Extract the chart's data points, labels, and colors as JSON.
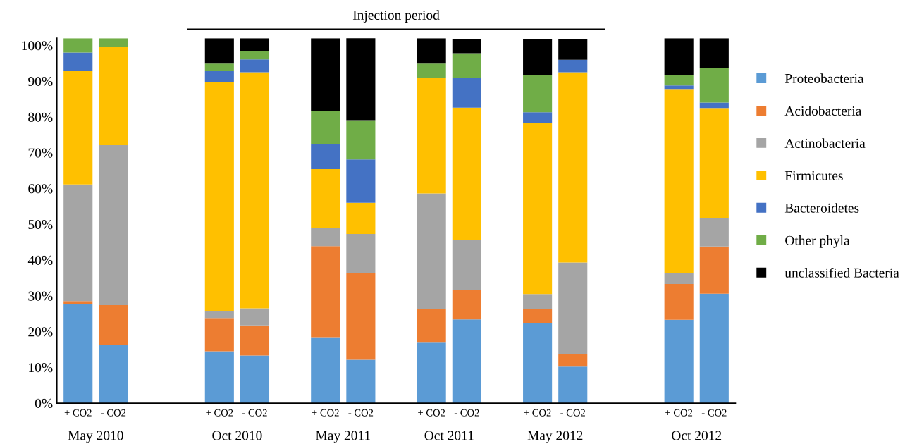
{
  "chart_data": {
    "type": "bar",
    "stacked": true,
    "categories": [
      "+ CO2",
      "- CO2",
      null,
      null,
      "+ CO2",
      "- CO2",
      null,
      "+ CO2",
      "- CO2",
      null,
      "+ CO2",
      "- CO2",
      null,
      "+ CO2",
      "- CO2",
      null,
      null,
      "+ CO2",
      "- CO2"
    ],
    "annotations": [
      "Injection period",
      "May 2010",
      "Oct 2010",
      "May 2011",
      "Oct 2011",
      "May 2012",
      "Oct 2012"
    ],
    "ylim": [
      0,
      102
    ],
    "yticks": [
      {
        "value": 0,
        "label": "0%"
      },
      {
        "value": 10,
        "label": "10%"
      },
      {
        "value": 20,
        "label": "20%"
      },
      {
        "value": 30,
        "label": "30%"
      },
      {
        "value": 40,
        "label": "40%"
      },
      {
        "value": 50,
        "label": "50%"
      },
      {
        "value": 60,
        "label": "60%"
      },
      {
        "value": 70,
        "label": "70%"
      },
      {
        "value": 80,
        "label": "80%"
      },
      {
        "value": 90,
        "label": "90%"
      },
      {
        "value": 100,
        "label": "100%"
      }
    ],
    "grid": false,
    "legend": "right",
    "marker": "square",
    "series": [
      {
        "name": "Proteobacteria",
        "color": "#5b9bd5",
        "values": [
          27.7,
          16.3,
          null,
          null,
          14.5,
          13.3,
          null,
          18.4,
          12.1,
          null,
          17.1,
          23.4,
          null,
          22.3,
          10.2,
          null,
          null,
          23.3,
          30.6
        ]
      },
      {
        "name": "Acidobacteria",
        "color": "#ed7d31",
        "values": [
          0.8,
          11.1,
          null,
          null,
          9.3,
          8.4,
          null,
          25.5,
          24.2,
          null,
          9.2,
          8.2,
          null,
          4.1,
          3.5,
          null,
          null,
          10.0,
          13.2
        ]
      },
      {
        "name": "Actinobacteria",
        "color": "#a5a5a5",
        "values": [
          32.6,
          44.7,
          null,
          null,
          2.0,
          4.8,
          null,
          5.1,
          11.0,
          null,
          32.3,
          13.9,
          null,
          4.1,
          25.6,
          null,
          null,
          3.0,
          8.0
        ]
      },
      {
        "name": "Firmicutes",
        "color": "#ffc000",
        "values": [
          31.7,
          27.5,
          null,
          null,
          64.0,
          66.0,
          null,
          16.4,
          8.7,
          null,
          32.3,
          37.1,
          null,
          47.9,
          53.2,
          null,
          null,
          51.5,
          30.7
        ]
      },
      {
        "name": "Bacteroidetes",
        "color": "#4472c4",
        "values": [
          5.2,
          0,
          null,
          null,
          3.0,
          3.6,
          null,
          7.0,
          12.1,
          null,
          0,
          8.3,
          null,
          2.9,
          3.5,
          null,
          null,
          1.0,
          1.5
        ]
      },
      {
        "name": "Other phyla",
        "color": "#70ad47",
        "values": [
          4.0,
          2.4,
          null,
          null,
          2.1,
          2.3,
          null,
          9.2,
          11.0,
          null,
          4.0,
          6.9,
          null,
          10.3,
          0,
          null,
          null,
          3.0,
          9.7
        ]
      },
      {
        "name": "unclassified Bacteria",
        "color": "#000000",
        "values": [
          0,
          0,
          null,
          null,
          7.1,
          3.6,
          null,
          20.4,
          23.0,
          null,
          7.1,
          4.0,
          null,
          10.2,
          5.8,
          null,
          null,
          10.2,
          8.3
        ]
      }
    ]
  }
}
